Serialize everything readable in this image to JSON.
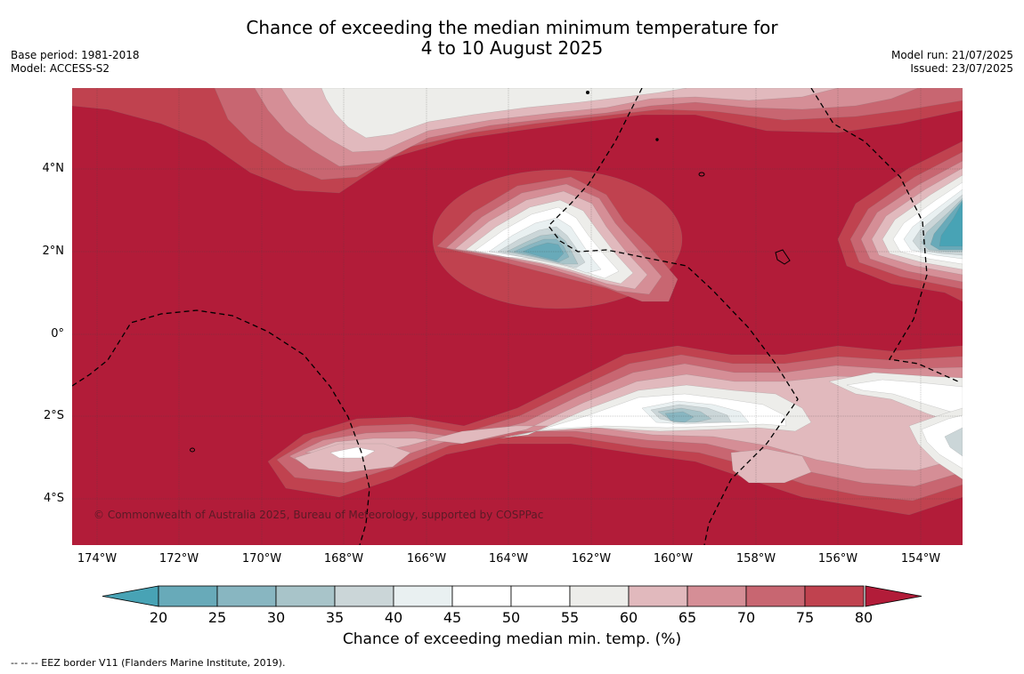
{
  "title": {
    "line1": "Chance of exceeding the median minimum temperature for",
    "line2": "4 to 10 August 2025"
  },
  "meta_left": {
    "base_period": "Base period: 1981-2018",
    "model": "Model: ACCESS-S2"
  },
  "meta_right": {
    "model_run": "Model run: 21/07/2025",
    "issued": "Issued: 23/07/2025"
  },
  "map": {
    "lon_ticks": [
      "174°W",
      "172°W",
      "170°W",
      "168°W",
      "166°W",
      "164°W",
      "162°W",
      "160°W",
      "158°W",
      "156°W",
      "154°W"
    ],
    "lat_ticks": [
      "4°N",
      "2°N",
      "0°",
      "2°S",
      "4°S"
    ],
    "copyright": "© Commonwealth of Australia 2025, Bureau of Meteorology, supported by COSPPac",
    "colors": {
      "background": "#b21c39",
      "c75": "#c0424f",
      "c70": "#c86671",
      "c65": "#d58e96",
      "c60": "#e1b9bd",
      "c55": "#ededea",
      "c50": "#ffffff",
      "c40": "#e9f0f1",
      "c35": "#cbd6d8",
      "c30": "#a8c4c9",
      "c25": "#88b6c1",
      "c20": "#68aab9",
      "below20": "#48a3b5"
    }
  },
  "colorbar": {
    "ticks": [
      "20",
      "25",
      "30",
      "35",
      "40",
      "45",
      "50",
      "55",
      "60",
      "65",
      "70",
      "75",
      "80"
    ],
    "colors": [
      "#68aab9",
      "#88b6c1",
      "#a8c4c9",
      "#cbd6d8",
      "#e9f0f1",
      "#ffffff",
      "#ffffff",
      "#ededea",
      "#e1b9bd",
      "#d58e96",
      "#c86671",
      "#c0424f"
    ],
    "under_color": "#48a3b5",
    "over_color": "#b21c39",
    "label": "Chance of exceeding median min. temp. (%)"
  },
  "footnote": "--  --  -- EEZ border V11 (Flanders Marine Institute, 2019)."
}
